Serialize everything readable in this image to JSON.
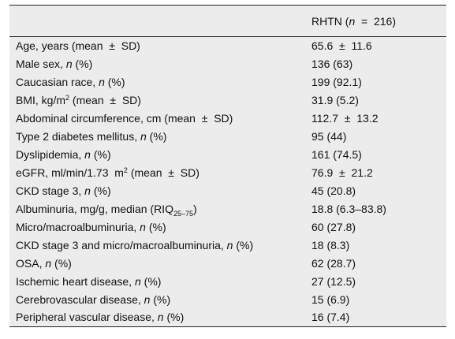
{
  "table": {
    "header": {
      "col1": "",
      "col2_pre": "RHTN (",
      "col2_n": "n",
      "col2_post": "  =  216)"
    },
    "rows": [
      {
        "pre": "Age, years (mean  ±  SD)",
        "em": "",
        "post": "",
        "value": "65.6  ±  11.6"
      },
      {
        "pre": "Male sex, ",
        "em": "n",
        "post": " (%)",
        "value": "136 (63)"
      },
      {
        "pre": "Caucasian race, ",
        "em": "n",
        "post": " (%)",
        "value": "199 (92.1)"
      },
      {
        "pre": "BMI, kg/m",
        "sup": "2",
        "post": " (mean  ±  SD)",
        "value": "31.9 (5.2)"
      },
      {
        "pre": "Abdominal circumference, cm (mean  ±  SD)",
        "em": "",
        "post": "",
        "value": "112.7  ±  13.2"
      },
      {
        "pre": "Type 2 diabetes mellitus, ",
        "em": "n",
        "post": " (%)",
        "value": "95 (44)"
      },
      {
        "pre": "Dyslipidemia, ",
        "em": "n",
        "post": " (%)",
        "value": "161 (74.5)"
      },
      {
        "pre": "eGFR, ml/min/1.73  m",
        "sup": "2",
        "post": " (mean  ±  SD)",
        "value": "76.9  ±  21.2"
      },
      {
        "pre": "CKD stage 3, ",
        "em": "n",
        "post": " (%)",
        "value": "45 (20.8)"
      },
      {
        "pre": "Albuminuria, mg/g, median (RIQ",
        "sub": "25–75",
        "post": ")",
        "value": "18.8 (6.3–83.8)"
      },
      {
        "pre": "Micro/macroalbuminuria, ",
        "em": "n",
        "post": " (%)",
        "value": "60 (27.8)"
      },
      {
        "pre": "CKD stage 3 and micro/macroalbuminuria, ",
        "em": "n",
        "post": " (%)",
        "value": "18 (8.3)"
      },
      {
        "pre": "OSA, ",
        "em": "n",
        "post": " (%)",
        "value": "62 (28.7)"
      },
      {
        "pre": "Ischemic heart disease, ",
        "em": "n",
        "post": " (%)",
        "value": "27 (12.5)"
      },
      {
        "pre": "Cerebrovascular disease, ",
        "em": "n",
        "post": " (%)",
        "value": "15 (6.9)"
      },
      {
        "pre": "Peripheral vascular disease, ",
        "em": "n",
        "post": " (%)",
        "value": "16 (7.4)"
      }
    ]
  }
}
